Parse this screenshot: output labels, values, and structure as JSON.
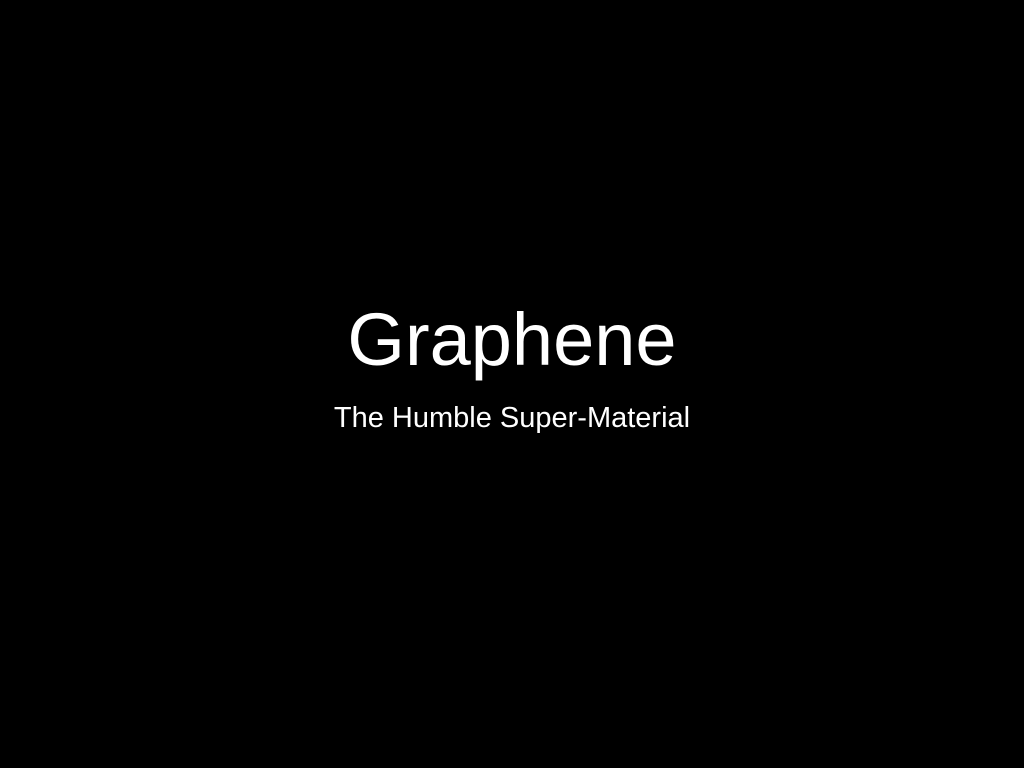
{
  "slide": {
    "title": "Graphene",
    "subtitle": "The Humble Super-Material",
    "background_color": "#000000",
    "text_color": "#ffffff"
  }
}
